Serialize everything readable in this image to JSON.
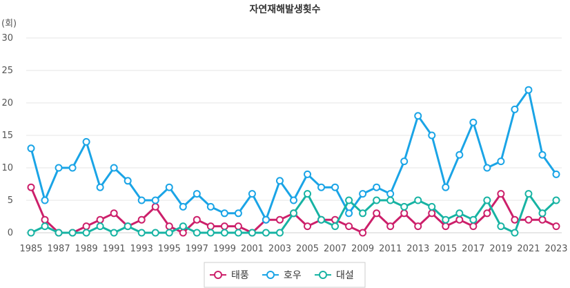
{
  "chart_data": {
    "type": "line",
    "title": "자연재해발생횟수",
    "unit_label": "(회)",
    "ylim": [
      0,
      30
    ],
    "yticks": [
      0,
      5,
      10,
      15,
      20,
      25,
      30
    ],
    "x": [
      1985,
      1986,
      1987,
      1988,
      1989,
      1990,
      1991,
      1992,
      1993,
      1994,
      1995,
      1996,
      1997,
      1998,
      1999,
      2000,
      2001,
      2002,
      2003,
      2004,
      2005,
      2006,
      2007,
      2008,
      2009,
      2010,
      2011,
      2012,
      2013,
      2014,
      2015,
      2016,
      2017,
      2018,
      2019,
      2020,
      2021,
      2022,
      2023
    ],
    "xtick_labels": [
      "1985",
      "1987",
      "1989",
      "1991",
      "1993",
      "1995",
      "1997",
      "1999",
      "2001",
      "2003",
      "2005",
      "2007",
      "2009",
      "2011",
      "2013",
      "2015",
      "2017",
      "2019",
      "2021",
      "2023"
    ],
    "grid": true,
    "legend_position": "bottom-center",
    "series": [
      {
        "name": "태풍",
        "color": "#cc1f6a",
        "values": [
          7,
          2,
          0,
          0,
          1,
          2,
          3,
          1,
          2,
          4,
          1,
          0,
          2,
          1,
          1,
          1,
          0,
          2,
          2,
          3,
          1,
          2,
          2,
          1,
          0,
          3,
          1,
          3,
          1,
          3,
          1,
          2,
          1,
          3,
          6,
          2,
          2,
          2,
          1
        ]
      },
      {
        "name": "호우",
        "color": "#1aa4e6",
        "values": [
          13,
          5,
          10,
          10,
          14,
          7,
          10,
          8,
          5,
          5,
          7,
          4,
          6,
          4,
          3,
          3,
          6,
          2,
          8,
          5,
          9,
          7,
          7,
          3,
          6,
          7,
          6,
          11,
          18,
          15,
          7,
          12,
          17,
          10,
          11,
          19,
          22,
          12,
          9
        ]
      },
      {
        "name": "대설",
        "color": "#17b3a3",
        "values": [
          0,
          1,
          0,
          0,
          0,
          1,
          0,
          1,
          0,
          0,
          0,
          1,
          0,
          0,
          0,
          0,
          0,
          0,
          0,
          3,
          6,
          2,
          1,
          5,
          3,
          5,
          5,
          4,
          5,
          4,
          2,
          3,
          2,
          5,
          1,
          0,
          6,
          3,
          5
        ]
      }
    ]
  }
}
